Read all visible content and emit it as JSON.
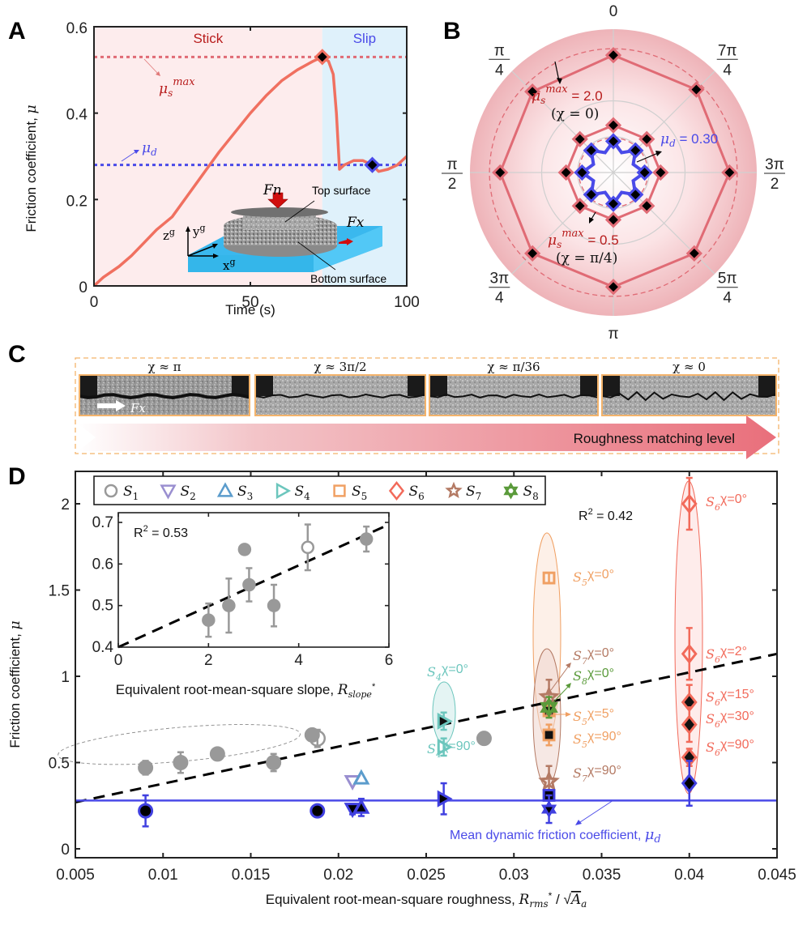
{
  "panels": {
    "A": "A",
    "B": "B",
    "C": "C",
    "D": "D"
  },
  "colors": {
    "stick_bg": "#fdeced",
    "slip_bg": "#dff1fb",
    "curve": "#f07060",
    "mus_line": "#e06b75",
    "mud_line": "#4a4ae8",
    "stick_text": "#b81c1c",
    "slip_text": "#4a4ae8",
    "s1": "#999999",
    "s2": "#9a8fd0",
    "s3": "#5b9ccc",
    "s4": "#6cc6bd",
    "s5": "#f0a063",
    "s6": "#f26a5a",
    "s7": "#b47a64",
    "s8": "#5a9a3a",
    "dyn": "#4040e0",
    "c_border": "#f3b36b"
  },
  "chart_data": [
    {
      "id": "A",
      "type": "line",
      "title": "",
      "xlabel": "Time (s)",
      "ylabel": "Friction coefficient, μ",
      "xlim": [
        0,
        100
      ],
      "ylim": [
        0,
        0.6
      ],
      "xticks": [
        0,
        50,
        100
      ],
      "yticks": [
        0,
        0.2,
        0.4,
        0.6
      ],
      "ytick_labels": [
        "0",
        "0.2",
        "0.4",
        "0.6"
      ],
      "regions": [
        {
          "label": "Stick",
          "x": [
            0,
            73
          ]
        },
        {
          "label": "Slip",
          "x": [
            73,
            100
          ]
        }
      ],
      "mu_s_max": 0.53,
      "mu_s_max_label": "μs^max",
      "mu_d": 0.28,
      "mu_d_label": "μd",
      "curve": {
        "x": [
          0,
          3,
          8,
          12,
          16,
          20,
          25,
          30,
          35,
          40,
          45,
          50,
          55,
          60,
          65,
          70,
          73,
          75,
          76.5,
          77.5,
          78.5,
          80,
          83,
          86,
          89,
          91,
          94,
          97,
          100
        ],
        "y": [
          0,
          0.02,
          0.045,
          0.07,
          0.1,
          0.13,
          0.16,
          0.21,
          0.26,
          0.31,
          0.355,
          0.4,
          0.44,
          0.475,
          0.5,
          0.52,
          0.53,
          0.52,
          0.49,
          0.4,
          0.27,
          0.28,
          0.29,
          0.29,
          0.28,
          0.265,
          0.27,
          0.28,
          0.3
        ]
      },
      "markers": [
        {
          "x": 73,
          "y": 0.53,
          "kind": "static-max"
        },
        {
          "x": 89,
          "y": 0.28,
          "kind": "dynamic"
        }
      ],
      "inset_labels": {
        "fn": "Fn",
        "fx": "Fx",
        "top": "Top surface",
        "bottom": "Bottom surface",
        "xg": "x",
        "yg": "y",
        "zg": "z",
        "g": "g"
      }
    },
    {
      "id": "B",
      "type": "polar",
      "angle_labels": [
        {
          "angle": "0",
          "num": "0",
          "den": ""
        },
        {
          "angle": "7π/4",
          "num": "7π",
          "den": "4"
        },
        {
          "angle": "3π/2",
          "num": "3π",
          "den": "2"
        },
        {
          "angle": "5π/4",
          "num": "5π",
          "den": "4"
        },
        {
          "angle": "π",
          "num": "π",
          "den": ""
        },
        {
          "angle": "3π/4",
          "num": "3π",
          "den": "4"
        },
        {
          "angle": "π/2",
          "num": "π",
          "den": "2"
        },
        {
          "angle": "π/4",
          "num": "π",
          "den": "4"
        }
      ],
      "rlim": [
        0,
        2.2
      ],
      "series": [
        {
          "name": "μs max (χ=0)",
          "values": [
            2.0,
            2.0,
            1.98,
            1.95,
            1.95,
            1.95,
            1.93,
            1.95
          ],
          "mean": 2.0
        },
        {
          "name": "μs max (χ=π/4)",
          "values": [
            0.5,
            0.5,
            0.5,
            0.5,
            0.5,
            0.5,
            0.5,
            0.5
          ],
          "mean": 0.5
        },
        {
          "name": "μd",
          "values": [
            0.3,
            0.3,
            0.3,
            0.3,
            0.3,
            0.3,
            0.3,
            0.3
          ],
          "mean": 0.3
        }
      ],
      "annotations": {
        "outer_prefix": "μs",
        "outer_sup": "max",
        "outer_value": "= 2.0",
        "outer_chi": "(χ = 0)",
        "inner_prefix": "μs",
        "inner_sup": "max",
        "inner_value": "= 0.5",
        "inner_chi": "(χ = π/4)",
        "mud_prefix": "μd",
        "mud_value": "= 0.30"
      }
    },
    {
      "id": "D",
      "type": "scatter",
      "xlabel": "Equivalent root-mean-square roughness, Rrms*/√Aa",
      "xlabel_plain": "Equivalent root-mean-square roughness, ",
      "ylabel": "Friction coefficient, μ",
      "xlim": [
        0.005,
        0.045
      ],
      "ylim": [
        -0.05,
        2.2
      ],
      "xticks": [
        0.005,
        0.01,
        0.015,
        0.02,
        0.025,
        0.03,
        0.035,
        0.04,
        0.045
      ],
      "xtick_labels": [
        "0.005",
        "0.01",
        "0.015",
        "0.02",
        "0.025",
        "0.03",
        "0.035",
        "0.04",
        "0.045"
      ],
      "yticks": [
        0,
        0.5,
        1,
        1.5,
        2
      ],
      "ytick_labels": [
        "0",
        "0.5",
        "1",
        "1.5",
        "2"
      ],
      "r2": "R² = 0.42",
      "fit_line": {
        "x": [
          0.005,
          0.045
        ],
        "y": [
          0.27,
          1.13
        ]
      },
      "mean_dynamic": {
        "y": 0.28,
        "label": "Mean dynamic friction coefficient, μd"
      },
      "legend": [
        {
          "name": "S1",
          "sub": "1",
          "marker": "circle"
        },
        {
          "name": "S2",
          "sub": "2",
          "marker": "triangle-down"
        },
        {
          "name": "S3",
          "sub": "3",
          "marker": "triangle-up"
        },
        {
          "name": "S4",
          "sub": "4",
          "marker": "triangle-right"
        },
        {
          "name": "S5",
          "sub": "5",
          "marker": "square"
        },
        {
          "name": "S6",
          "sub": "6",
          "marker": "diamond"
        },
        {
          "name": "S7",
          "sub": "7",
          "marker": "star5"
        },
        {
          "name": "S8",
          "sub": "8",
          "marker": "star6"
        }
      ],
      "static_points": [
        {
          "set": "S1",
          "x": 0.009,
          "y": 0.47,
          "err": 0.04,
          "fill": true
        },
        {
          "set": "S1",
          "x": 0.011,
          "y": 0.5,
          "err": 0.06,
          "fill": true
        },
        {
          "set": "S1",
          "x": 0.0131,
          "y": 0.55,
          "err": 0.0,
          "fill": true
        },
        {
          "set": "S1",
          "x": 0.0163,
          "y": 0.5,
          "err": 0.05,
          "fill": true
        },
        {
          "set": "S1",
          "x": 0.0185,
          "y": 0.66,
          "err": 0.0,
          "fill": true
        },
        {
          "set": "S1",
          "x": 0.0188,
          "y": 0.64,
          "err": 0.05,
          "fill": false
        },
        {
          "set": "S1",
          "x": 0.0283,
          "y": 0.64,
          "err": 0.0,
          "fill": true
        },
        {
          "set": "S2",
          "x": 0.0208,
          "y": 0.39,
          "err": 0.0,
          "fill": false
        },
        {
          "set": "S3",
          "x": 0.0213,
          "y": 0.41,
          "err": 0.0,
          "fill": false
        },
        {
          "set": "S4",
          "x": 0.026,
          "y": 0.74,
          "err": 0.05,
          "fill": true,
          "label": "χ=0°"
        },
        {
          "set": "S4",
          "x": 0.026,
          "y": 0.59,
          "err": 0.05,
          "fill": false,
          "label": "χ=90°"
        },
        {
          "set": "S5",
          "x": 0.032,
          "y": 1.57,
          "err": 0.03,
          "fill": false,
          "label": "χ=0°"
        },
        {
          "set": "S5",
          "x": 0.032,
          "y": 0.8,
          "err": 0.03,
          "fill": true,
          "label": "χ=5°"
        },
        {
          "set": "S5",
          "x": 0.032,
          "y": 0.66,
          "err": 0.06,
          "fill": true,
          "label": "χ=90°"
        },
        {
          "set": "S7",
          "x": 0.032,
          "y": 0.88,
          "err": 0.1,
          "fill": false,
          "label": "χ=0°"
        },
        {
          "set": "S7",
          "x": 0.032,
          "y": 0.39,
          "err": 0.09,
          "fill": false,
          "label": "χ=90°"
        },
        {
          "set": "S8",
          "x": 0.032,
          "y": 0.82,
          "err": 0.06,
          "fill": false,
          "label": "χ=0°"
        },
        {
          "set": "S6",
          "x": 0.04,
          "y": 2.0,
          "err": 0.15,
          "fill": false,
          "label": "χ=0°"
        },
        {
          "set": "S6",
          "x": 0.04,
          "y": 1.13,
          "err": 0.15,
          "fill": false,
          "label": "χ=2°"
        },
        {
          "set": "S6",
          "x": 0.04,
          "y": 0.85,
          "err": 0.1,
          "fill": true,
          "label": "χ=15°"
        },
        {
          "set": "S6",
          "x": 0.04,
          "y": 0.72,
          "err": 0.1,
          "fill": true,
          "label": "χ=30°"
        },
        {
          "set": "S6",
          "x": 0.04,
          "y": 0.53,
          "err": 0.05,
          "fill": true,
          "label": "χ=90°"
        }
      ],
      "dynamic_points": [
        {
          "set": "S1",
          "x": 0.009,
          "y": 0.22,
          "err": 0.09
        },
        {
          "set": "S1",
          "x": 0.0188,
          "y": 0.22,
          "err": 0.03
        },
        {
          "set": "S2",
          "x": 0.0208,
          "y": 0.23,
          "err": 0.03
        },
        {
          "set": "S3",
          "x": 0.0213,
          "y": 0.24,
          "err": 0.05
        },
        {
          "set": "S4",
          "x": 0.026,
          "y": 0.29,
          "err": 0.09
        },
        {
          "set": "S5",
          "x": 0.032,
          "y": 0.31,
          "err": 0.03
        },
        {
          "set": "S8",
          "x": 0.032,
          "y": 0.23,
          "err": 0.08
        },
        {
          "set": "S6",
          "x": 0.04,
          "y": 0.38,
          "err": 0.13
        }
      ],
      "inset": {
        "type": "scatter",
        "xlabel": "Equivalent root-mean-square slope, Rslope*",
        "xlabel_plain": "Equivalent root-mean-square slope, ",
        "xlim": [
          0,
          6
        ],
        "ylim": [
          0.4,
          0.72
        ],
        "xticks": [
          0,
          2,
          4,
          6
        ],
        "xtick_labels": [
          "0",
          "2",
          "4",
          "6"
        ],
        "yticks": [
          0.4,
          0.5,
          0.6,
          0.7
        ],
        "ytick_labels": [
          "0.4",
          "0.5",
          "0.6",
          "0.7"
        ],
        "r2": "R² = 0.53",
        "fit_line": {
          "x": [
            0,
            6
          ],
          "y": [
            0.4,
            0.695
          ]
        },
        "points": [
          {
            "x": 2.0,
            "y": 0.465,
            "err": 0.04,
            "fill": true
          },
          {
            "x": 2.45,
            "y": 0.5,
            "err": 0.065,
            "fill": true
          },
          {
            "x": 2.8,
            "y": 0.635,
            "err": 0.0,
            "fill": true
          },
          {
            "x": 2.9,
            "y": 0.55,
            "err": 0.04,
            "fill": true
          },
          {
            "x": 3.45,
            "y": 0.5,
            "err": 0.05,
            "fill": true
          },
          {
            "x": 4.2,
            "y": 0.64,
            "err": 0.055,
            "fill": false
          },
          {
            "x": 5.5,
            "y": 0.66,
            "err": 0.03,
            "fill": true
          }
        ]
      }
    }
  ],
  "panel_c": {
    "images": [
      {
        "label": "χ ≈ π"
      },
      {
        "label": "χ ≈ 3π/2"
      },
      {
        "label": "χ ≈ π/36"
      },
      {
        "label": "χ ≈ 0"
      }
    ],
    "force_label": "Fx",
    "arrow_label": "Roughness matching level"
  }
}
